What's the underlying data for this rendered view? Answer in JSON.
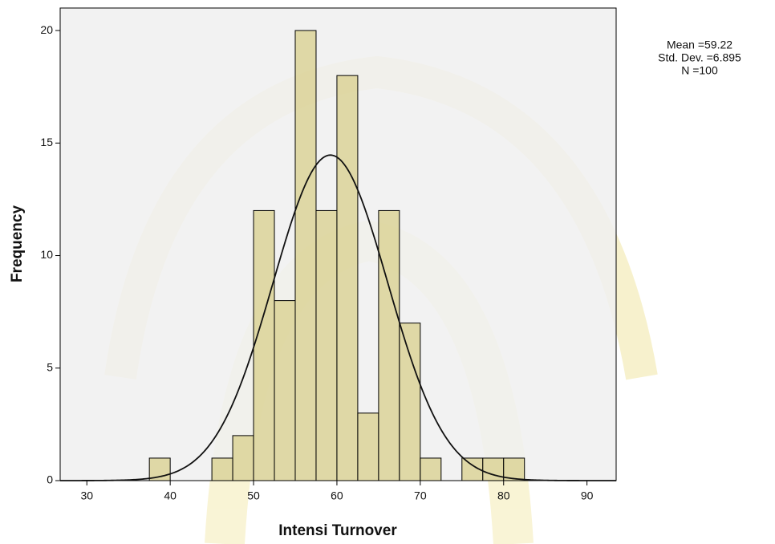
{
  "chart_data": {
    "type": "histogram",
    "x_label": "Intensi Turnover",
    "y_label": "Frequency",
    "bins": [
      37.5,
      40,
      42.5,
      45,
      47.5,
      50,
      52.5,
      55,
      57.5,
      60,
      62.5,
      65,
      67.5,
      70,
      72.5,
      75,
      77.5,
      80,
      82.5
    ],
    "values": [
      1,
      0,
      0,
      1,
      2,
      12,
      8,
      20,
      12,
      18,
      3,
      12,
      7,
      1,
      0,
      1,
      1,
      1
    ],
    "color": "#d8cf8c",
    "xlim": [
      26.8,
      93.5
    ],
    "xticks": [
      30,
      40,
      50,
      60,
      70,
      80,
      90
    ],
    "ylim": [
      0,
      21
    ],
    "yticks": [
      0,
      5,
      10,
      15,
      20
    ],
    "stats": {
      "mean": {
        "value": 59.22,
        "label": "Mean =59.22"
      },
      "sd": {
        "value": 6.895,
        "label": "Std. Dev. =6.895"
      },
      "n": {
        "value": 100,
        "label": "N =100"
      }
    },
    "normal_curve": true
  }
}
